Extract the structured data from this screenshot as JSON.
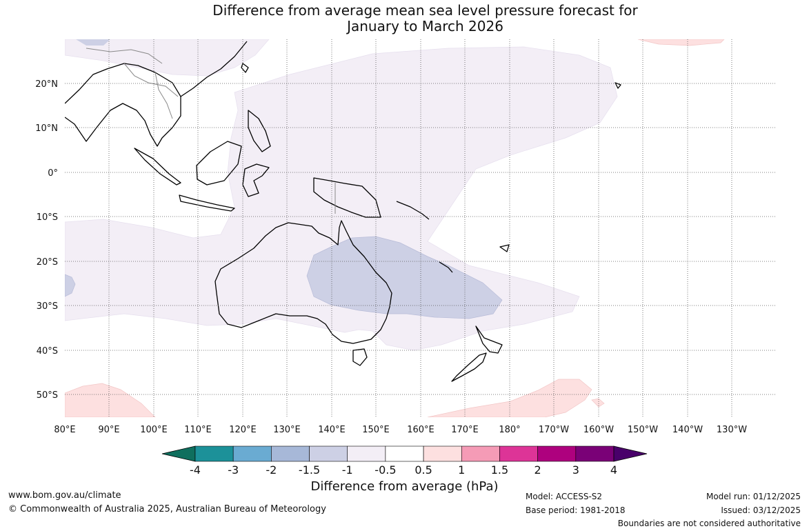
{
  "title_line1": "Difference from average mean sea level pressure forecast for",
  "title_line2": "January to March 2026",
  "map": {
    "lat_labels": [
      "20°N",
      "10°N",
      "0°",
      "10°S",
      "20°S",
      "30°S",
      "40°S",
      "50°S"
    ],
    "lon_labels": [
      "80°E",
      "90°E",
      "100°E",
      "110°E",
      "120°E",
      "130°E",
      "140°E",
      "150°E",
      "160°E",
      "170°E",
      "180°",
      "170°W",
      "160°W",
      "150°W",
      "140°W",
      "130°W"
    ]
  },
  "colorbar": {
    "label": "Difference from average (hPa)",
    "ticks": [
      "-4",
      "-3",
      "-2",
      "-1.5",
      "-1",
      "-0.5",
      "0.5",
      "1",
      "1.5",
      "2",
      "3",
      "4"
    ],
    "colors": [
      "#0f6f5e",
      "#1c9199",
      "#6aabd2",
      "#a7b8d8",
      "#cdd0e5",
      "#f3eef6",
      "#ffffff",
      "#fde0e0",
      "#f59bb6",
      "#dd3497",
      "#ae017e",
      "#7a0177",
      "#49006a"
    ]
  },
  "footer": {
    "website": "www.bom.gov.au/climate",
    "copyright": "© Commonwealth of Australia 2025, Australian Bureau of Meteorology",
    "model": "Model: ACCESS-S2",
    "base_period": "Base period: 1981-2018",
    "model_run": "Model run: 01/12/2025",
    "issued": "Issued: 03/12/2025",
    "disclaimer": "Boundaries are not considered authoritative"
  }
}
